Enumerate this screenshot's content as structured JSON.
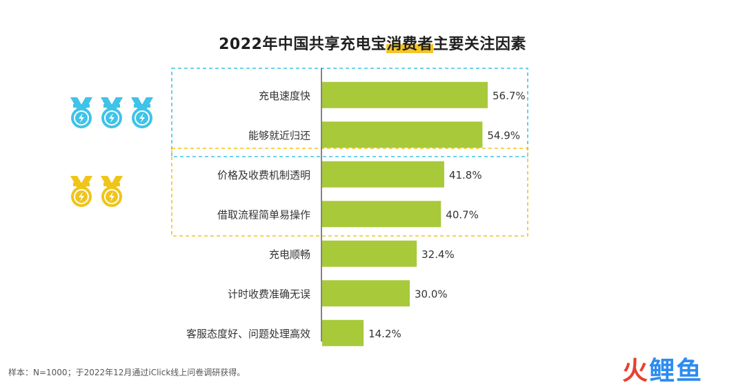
{
  "title": {
    "pre": "2022年中国共享充电宝",
    "highlight": "消费者",
    "post": "主要关注因素"
  },
  "chart_data": {
    "type": "bar",
    "orientation": "horizontal",
    "title": "2022年中国共享充电宝消费者主要关注因素",
    "categories": [
      "充电速度快",
      "能够就近归还",
      "价格及收费机制透明",
      "借取流程简单易操作",
      "充电顺畅",
      "计时收费准确无误",
      "客服态度好、问题处理高效"
    ],
    "values": [
      56.7,
      54.9,
      41.8,
      40.7,
      32.4,
      30.0,
      14.2
    ],
    "value_labels": [
      "56.7%",
      "54.9%",
      "41.8%",
      "40.7%",
      "32.4%",
      "30.0%",
      "14.2%"
    ],
    "unit": "%",
    "bar_color": "#a8c93a",
    "groups": [
      {
        "members": [
          0,
          1
        ],
        "box_color": "#3fc3e8",
        "medal_color": "#3fc3e8",
        "medal_count": 3
      },
      {
        "members": [
          2,
          3
        ],
        "box_color": "#f0c419",
        "medal_color": "#f0c419",
        "medal_count": 2
      }
    ],
    "grid": false,
    "legend": "none"
  },
  "footnote": "样本：N=1000；于2022年12月通过iClick线上问卷调研获得。",
  "watermark": {
    "part1": "火",
    "part2": "鲤鱼"
  },
  "colors": {
    "bar": "#a8c93a",
    "blue": "#3fc3e8",
    "yellow": "#f0c419",
    "axis": "#333333",
    "text": "#333333"
  }
}
